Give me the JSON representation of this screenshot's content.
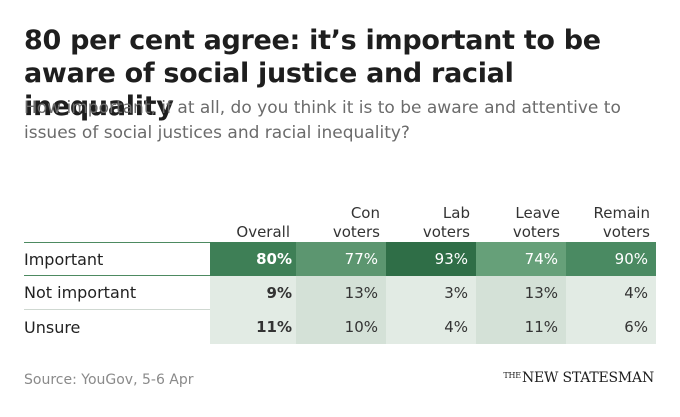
{
  "title": "80 per cent agree: it’s important to be aware of social justice and racial inequality",
  "subtitle": "How important, if at all, do you think it is to be aware and attentive to issues of social justices and racial inequality?",
  "source": "Source: YouGov, 5-6 Apr",
  "brand": {
    "the": "THE",
    "name": "NEW STATESMAN"
  },
  "chart_data": {
    "type": "table",
    "columns": [
      "Overall",
      "Con\nvoters",
      "Lab\nvoters",
      "Leave\nvoters",
      "Remain\nvoters"
    ],
    "rows": [
      {
        "label": "Important",
        "values": [
          "80%",
          "77%",
          "93%",
          "74%",
          "90%"
        ],
        "numeric": [
          80,
          77,
          93,
          74,
          90
        ]
      },
      {
        "label": "Not important",
        "values": [
          "9%",
          "13%",
          "3%",
          "13%",
          "4%"
        ],
        "numeric": [
          9,
          13,
          3,
          13,
          4
        ]
      },
      {
        "label": "Unsure",
        "values": [
          "11%",
          "10%",
          "4%",
          "11%",
          "6%"
        ],
        "numeric": [
          11,
          10,
          4,
          11,
          6
        ]
      }
    ],
    "colors": {
      "Important": [
        "#3e7f56",
        "#5c9670",
        "#2f6e47",
        "#66a079",
        "#4a8a62"
      ],
      "Not important": [
        "#e2ebe4",
        "#d4e1d7",
        "#e2ebe4",
        "#d4e1d7",
        "#e2ebe4"
      ],
      "Unsure": [
        "#e2ebe4",
        "#d4e1d7",
        "#e2ebe4",
        "#d4e1d7",
        "#e2ebe4"
      ]
    }
  }
}
